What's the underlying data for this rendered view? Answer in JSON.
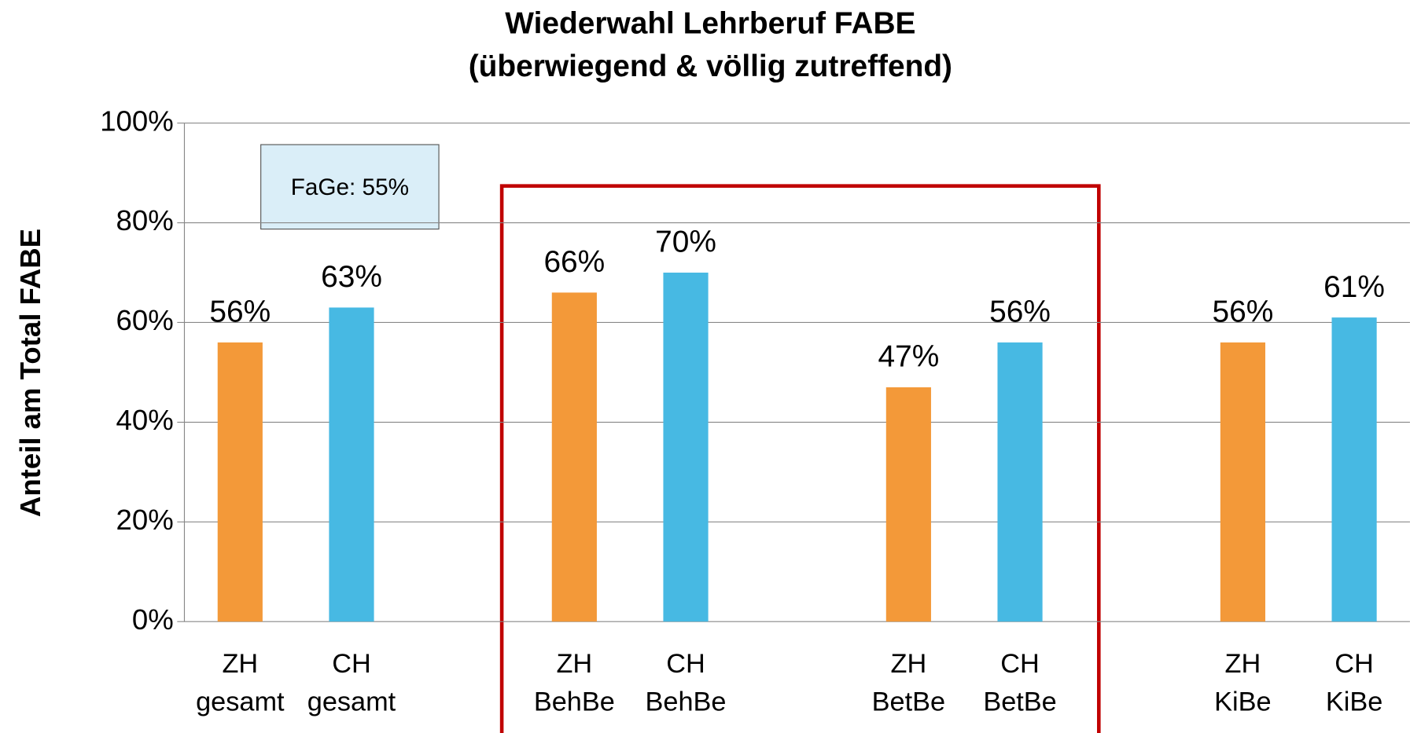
{
  "chart_data": {
    "type": "bar",
    "title": "Wiederwahl Lehrberuf FABE",
    "subtitle": "(überwiegend & völlig zutreffend)",
    "y_label": "Anteil am Total FABE",
    "categories": [
      "ZH gesamt",
      "CH gesamt",
      null,
      "ZH BehBe",
      "CH BehBe",
      null,
      "ZH BetBe",
      "CH BetBe",
      null,
      "ZH KiBe",
      "CH KiBe"
    ],
    "values": [
      56,
      63,
      null,
      66,
      70,
      null,
      47,
      56,
      null,
      56,
      61
    ],
    "value_labels": [
      "56%",
      "63%",
      null,
      "66%",
      "70%",
      null,
      "47%",
      "56%",
      null,
      "56%",
      "61%"
    ],
    "colors": [
      "#f39939",
      "#47b9e3",
      null,
      "#f39939",
      "#47b9e3",
      null,
      "#f39939",
      "#47b9e3",
      null,
      "#f39939",
      "#47b9e3"
    ],
    "ylim": [
      0,
      100
    ],
    "yticks": [
      {
        "value": 0,
        "label": "0%"
      },
      {
        "value": 20,
        "label": "20%"
      },
      {
        "value": 40,
        "label": "40%"
      },
      {
        "value": 60,
        "label": "60%"
      },
      {
        "value": 80,
        "label": "80%"
      },
      {
        "value": 100,
        "label": "100%"
      }
    ],
    "grid": true,
    "annotation": "FaGe: 55%"
  }
}
